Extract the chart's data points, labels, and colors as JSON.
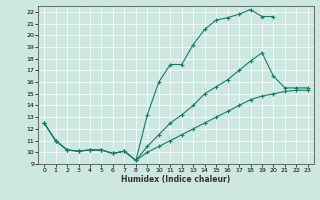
{
  "xlabel": "Humidex (Indice chaleur)",
  "bg_color": "#cce8e0",
  "line_color": "#1a7a6a",
  "xlim": [
    -0.5,
    23.5
  ],
  "ylim": [
    9,
    22.5
  ],
  "yticks": [
    9,
    10,
    11,
    12,
    13,
    14,
    15,
    16,
    17,
    18,
    19,
    20,
    21,
    22
  ],
  "xticks": [
    0,
    1,
    2,
    3,
    4,
    5,
    6,
    7,
    8,
    9,
    10,
    11,
    12,
    13,
    14,
    15,
    16,
    17,
    18,
    19,
    20,
    21,
    22,
    23
  ],
  "line1_x": [
    0,
    1,
    2,
    3,
    4,
    5,
    6,
    7,
    8,
    9,
    10,
    11,
    12,
    13,
    14,
    15,
    16,
    17,
    18,
    19,
    20
  ],
  "line1_y": [
    12.5,
    11.0,
    10.2,
    10.1,
    10.2,
    10.2,
    9.9,
    10.1,
    9.3,
    13.2,
    16.0,
    17.5,
    17.5,
    19.2,
    20.5,
    21.3,
    21.5,
    21.8,
    22.2,
    21.6,
    21.6
  ],
  "line2_x": [
    0,
    1,
    2,
    3,
    4,
    5,
    6,
    7,
    8,
    9,
    10,
    11,
    12,
    13,
    14,
    15,
    16,
    17,
    18,
    19,
    20,
    21,
    22,
    23
  ],
  "line2_y": [
    12.5,
    11.0,
    10.2,
    10.1,
    10.2,
    10.2,
    9.9,
    10.1,
    9.3,
    10.5,
    11.5,
    12.5,
    13.2,
    14.0,
    15.0,
    15.6,
    16.2,
    17.0,
    17.8,
    18.5,
    16.5,
    15.5,
    15.5,
    15.5
  ],
  "line3_x": [
    0,
    1,
    2,
    3,
    4,
    5,
    6,
    7,
    8,
    9,
    10,
    11,
    12,
    13,
    14,
    15,
    16,
    17,
    18,
    19,
    20,
    21,
    22,
    23
  ],
  "line3_y": [
    12.5,
    11.0,
    10.2,
    10.1,
    10.2,
    10.2,
    9.9,
    10.1,
    9.3,
    10.0,
    10.5,
    11.0,
    11.5,
    12.0,
    12.5,
    13.0,
    13.5,
    14.0,
    14.5,
    14.8,
    15.0,
    15.2,
    15.3,
    15.3
  ]
}
